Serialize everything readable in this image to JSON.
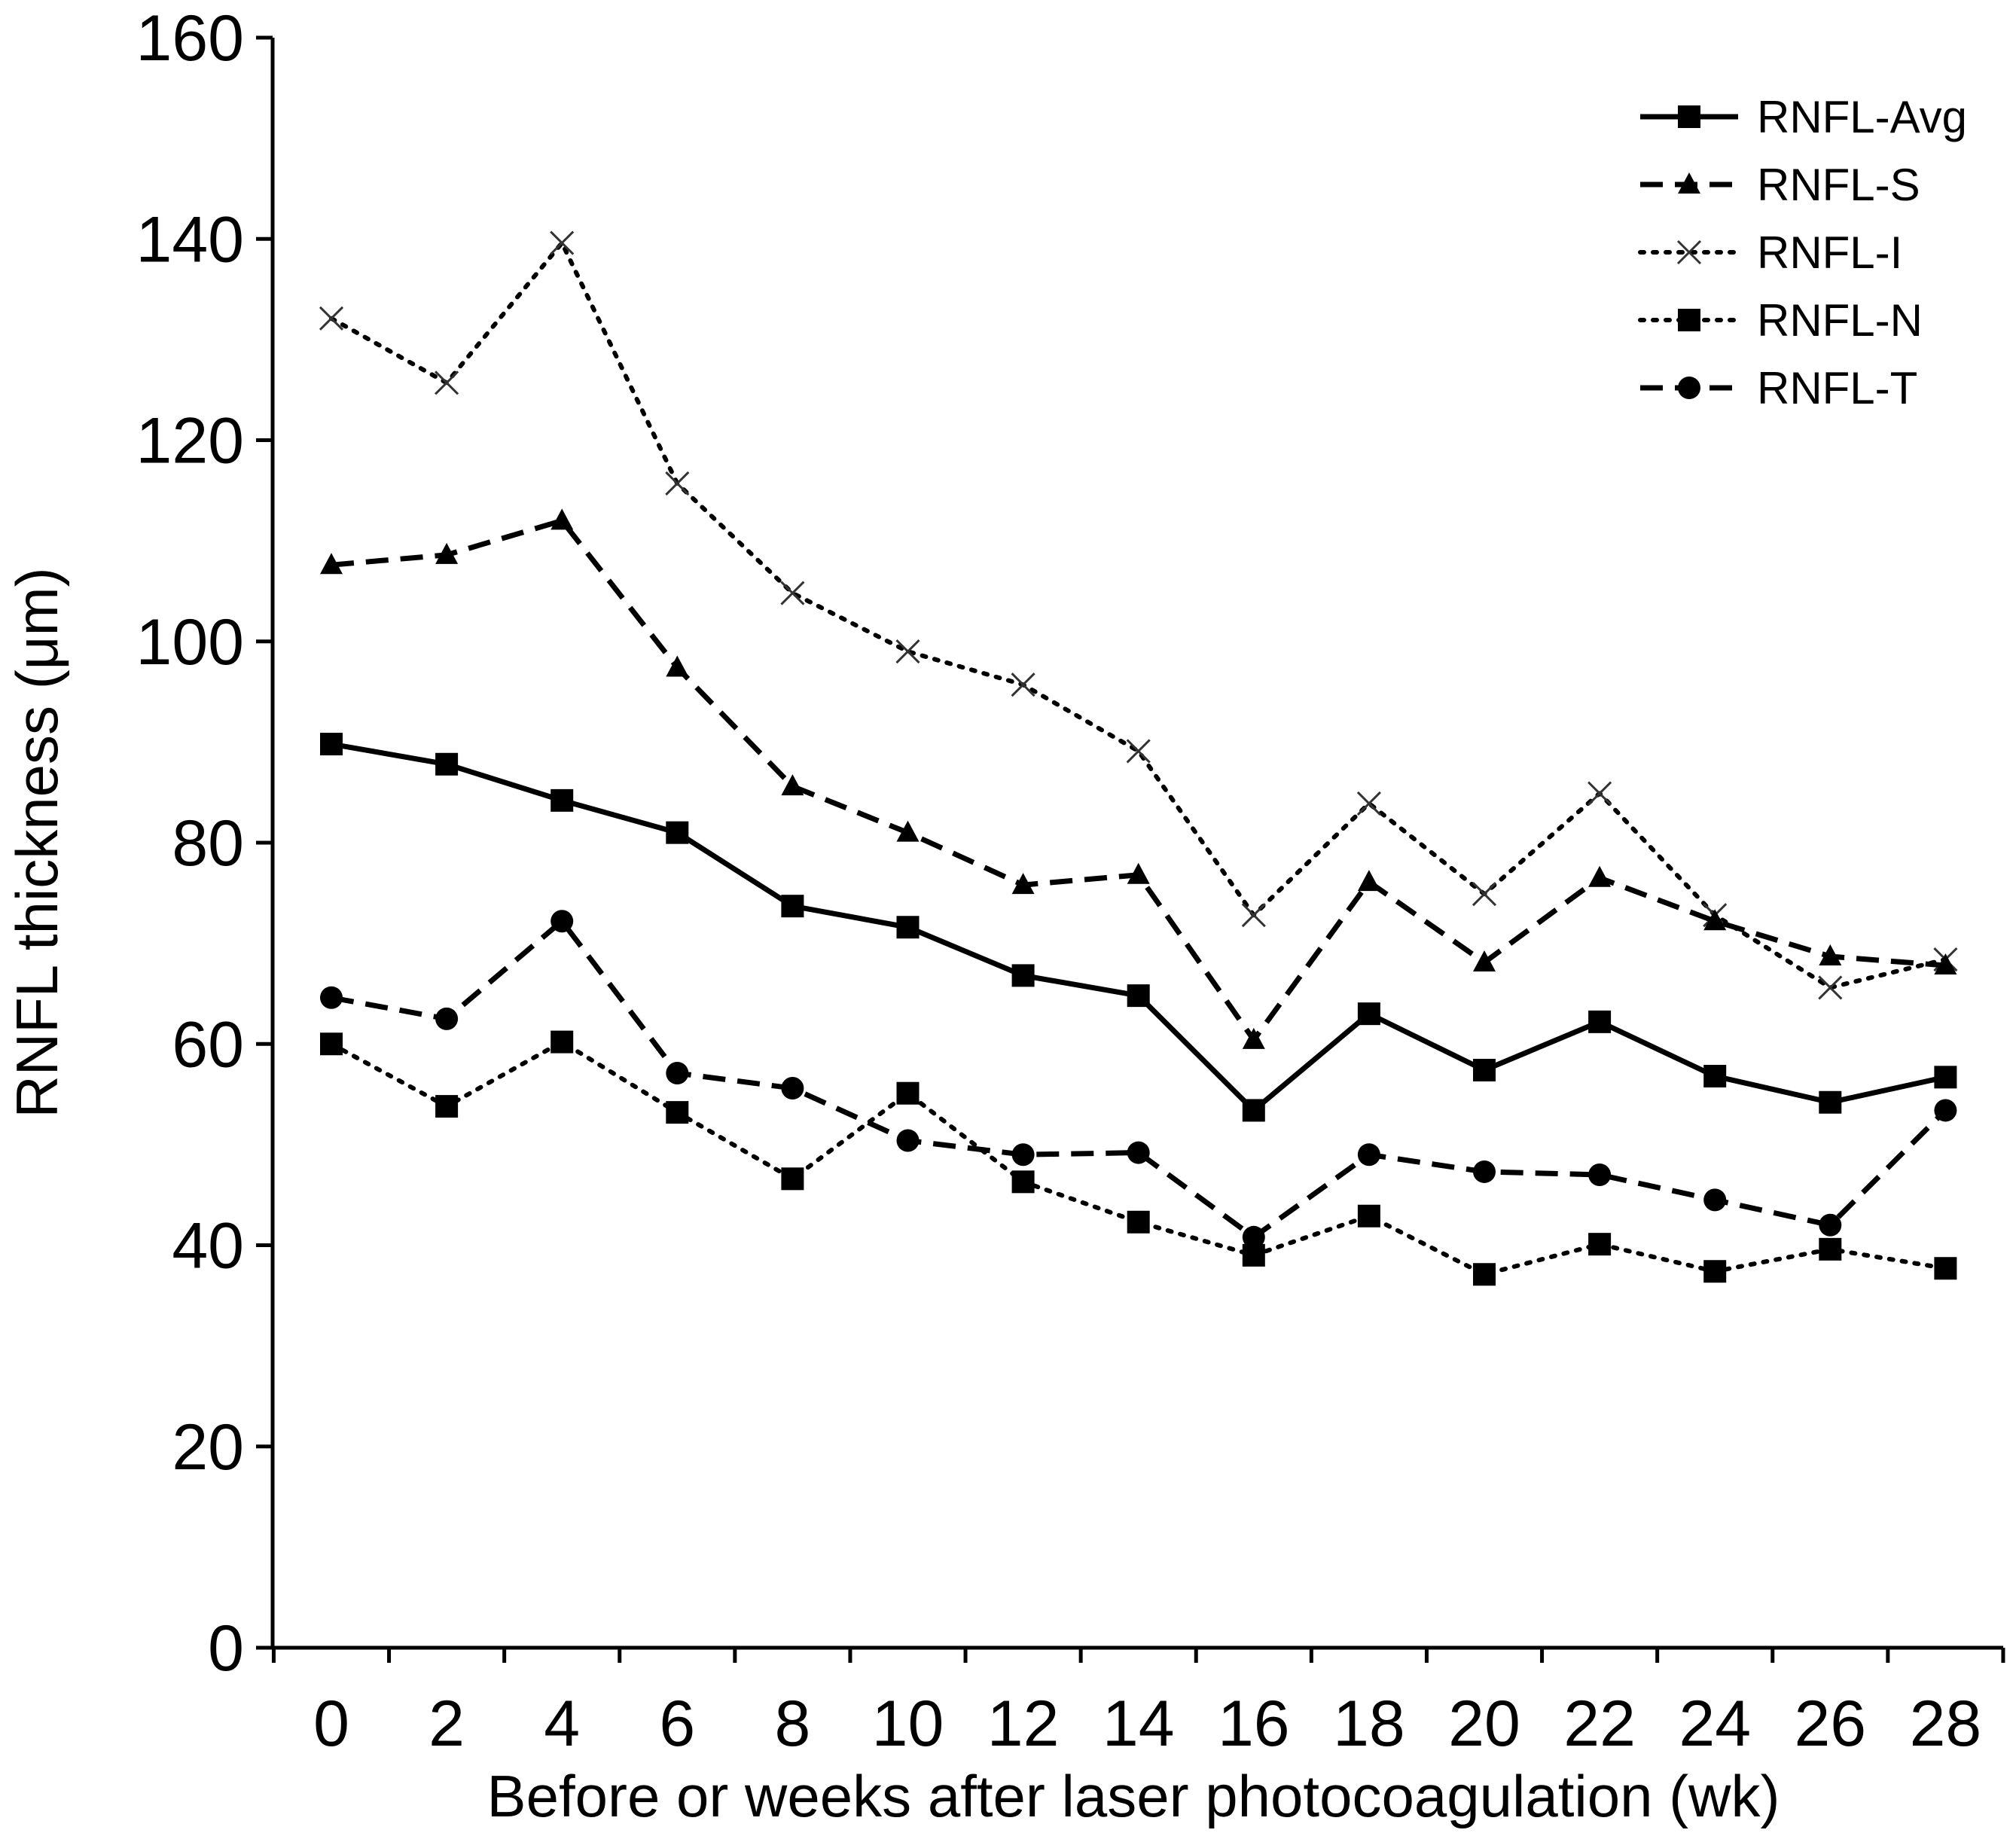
{
  "chart_data": {
    "type": "line",
    "title": "",
    "xlabel": "Before or weeks after laser photocoagulation (wk)",
    "ylabel": "RNFL thickness (μm)",
    "ylim": [
      0,
      160
    ],
    "yticks": [
      0,
      20,
      40,
      60,
      80,
      100,
      120,
      140,
      160
    ],
    "x": [
      0,
      2,
      4,
      6,
      8,
      10,
      12,
      14,
      16,
      18,
      20,
      22,
      24,
      26,
      28
    ],
    "grid": false,
    "legend_position": "top-right",
    "series": [
      {
        "name": "RNFL-Avg",
        "line": "solid",
        "marker": "square",
        "values": [
          89.8,
          87.8,
          84.2,
          81.0,
          73.7,
          71.6,
          66.8,
          64.8,
          53.4,
          63.0,
          57.4,
          62.2,
          56.8,
          54.2,
          56.7
        ]
      },
      {
        "name": "RNFL-S",
        "line": "dashed",
        "marker": "triangle",
        "values": [
          107.6,
          108.6,
          112.0,
          97.4,
          85.6,
          81.0,
          75.8,
          76.8,
          60.4,
          76.1,
          68.1,
          76.5,
          72.2,
          68.7,
          67.8
        ]
      },
      {
        "name": "RNFL-I",
        "line": "dotted",
        "marker": "x",
        "values": [
          132.1,
          125.7,
          139.6,
          115.7,
          104.8,
          99.0,
          95.7,
          89.1,
          72.8,
          83.9,
          74.9,
          84.9,
          72.8,
          65.6,
          68.4
        ]
      },
      {
        "name": "RNFL-N",
        "line": "dotted",
        "marker": "square",
        "values": [
          60.0,
          53.8,
          60.2,
          53.2,
          46.6,
          55.1,
          46.3,
          42.3,
          39.0,
          42.9,
          37.1,
          40.1,
          37.4,
          39.6,
          37.7
        ]
      },
      {
        "name": "RNFL-T",
        "line": "dashed",
        "marker": "circle",
        "values": [
          64.6,
          62.5,
          72.2,
          57.1,
          55.6,
          50.4,
          49.0,
          49.2,
          40.8,
          49.0,
          47.3,
          47.0,
          44.5,
          42.0,
          53.4
        ]
      }
    ]
  }
}
